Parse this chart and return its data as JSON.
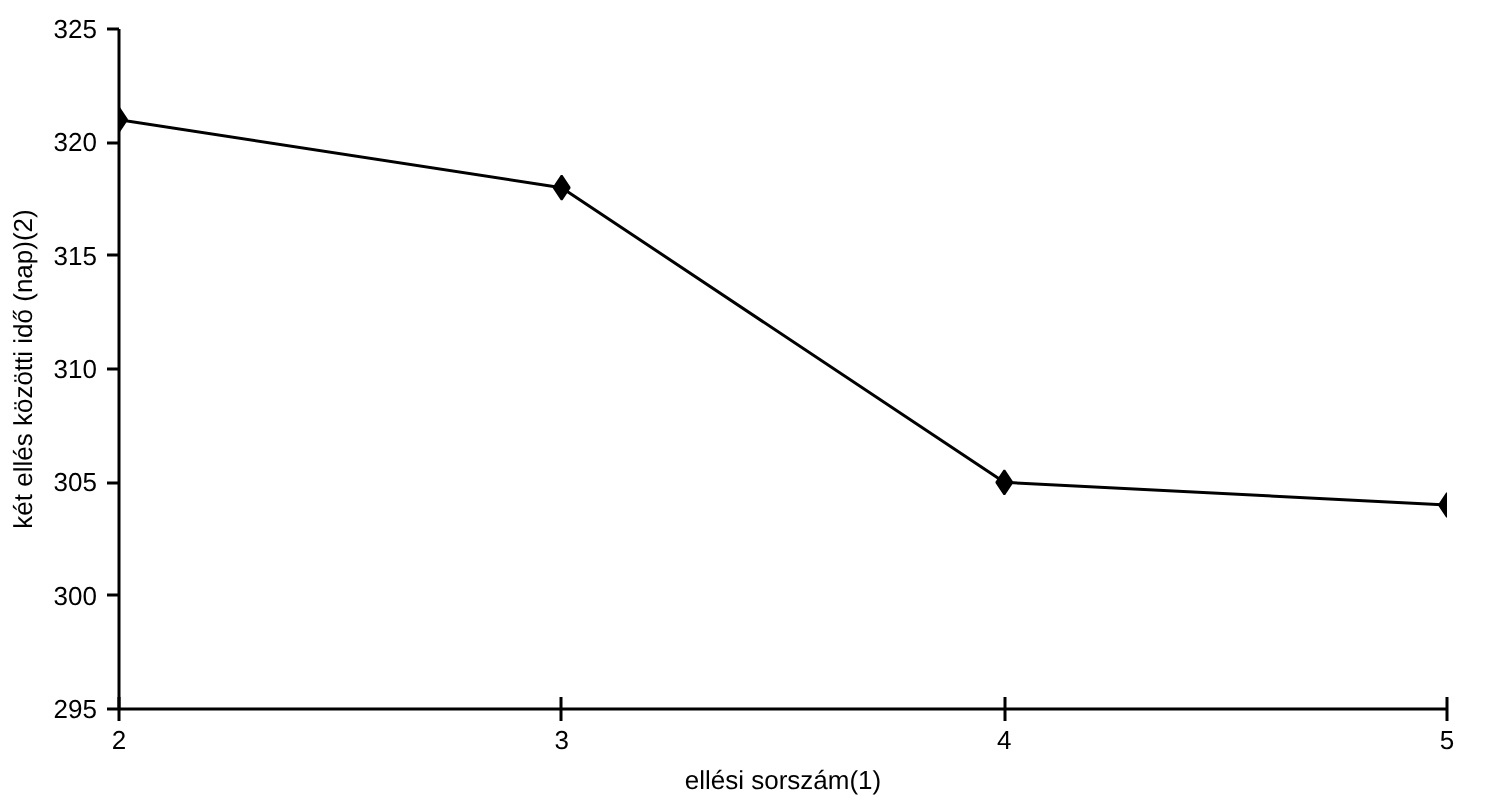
{
  "chart_data": {
    "type": "line",
    "xlabel": "ellési sorszám(1)",
    "ylabel": "két ellés közötti idő (nap)(2)",
    "x": [
      2,
      3,
      4,
      5
    ],
    "series": [
      {
        "color": "#000000",
        "values": [
          321,
          318,
          305,
          304
        ]
      }
    ],
    "xlim": [
      2,
      5
    ],
    "xticks": [
      2,
      3,
      4,
      5
    ],
    "ylim": [
      295,
      325
    ],
    "yticks": [
      295,
      300,
      305,
      310,
      315,
      320,
      325
    ],
    "grid": false,
    "marker": "diamond",
    "line_style": "solid"
  }
}
